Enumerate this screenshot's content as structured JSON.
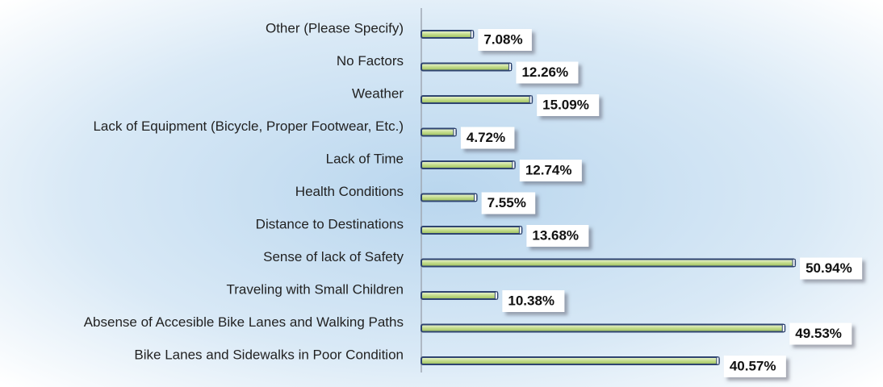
{
  "chart_data": {
    "type": "bar",
    "orientation": "horizontal",
    "categories": [
      "Other (Please Specify)",
      "No Factors",
      "Weather",
      "Lack of Equipment (Bicycle, Proper Footwear, Etc.)",
      "Lack of Time",
      "Health Conditions",
      "Distance to Destinations",
      "Sense of lack of Safety",
      "Traveling with Small Children",
      "Absense of Accesible Bike Lanes and Walking Paths",
      "Bike Lanes and Sidewalks in Poor Condition"
    ],
    "values": [
      7.08,
      12.26,
      15.09,
      4.72,
      12.74,
      7.55,
      13.68,
      50.94,
      10.38,
      49.53,
      40.57
    ],
    "value_labels": [
      "7.08%",
      "12.26%",
      "15.09%",
      "4.72%",
      "12.74%",
      "7.55%",
      "13.68%",
      "50.94%",
      "10.38%",
      "49.53%",
      "40.57%"
    ],
    "color": "#c4dc8c",
    "edge_color": "#2f4470",
    "xlim": [
      0,
      55
    ]
  }
}
